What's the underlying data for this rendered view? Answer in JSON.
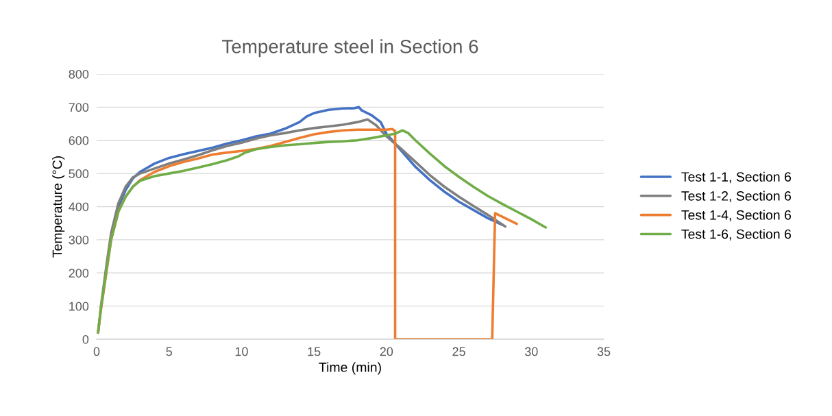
{
  "chart_data": {
    "type": "line",
    "title": "Temperature steel in Section 6",
    "xlabel": "Time (min)",
    "ylabel": "Temperature (°C)",
    "xlim": [
      0,
      35
    ],
    "xticks": [
      0,
      5,
      10,
      15,
      20,
      25,
      30,
      35
    ],
    "ylim": [
      0,
      800
    ],
    "yticks": [
      0,
      100,
      200,
      300,
      400,
      500,
      600,
      700,
      800
    ],
    "grid": "y",
    "legend": "right",
    "marker": "none",
    "line_style": "solid",
    "series": [
      {
        "name": "Test 1-1, Section 6",
        "color": "#4472c4",
        "x": [
          1,
          1.5,
          2,
          2.5,
          3,
          4,
          5,
          6,
          7,
          8,
          9,
          10,
          11,
          12,
          13,
          14,
          14.5,
          15,
          16,
          17,
          17.8,
          18.1,
          18.3,
          19,
          19.6,
          20,
          21,
          22,
          23,
          24,
          25,
          26,
          27,
          28
        ],
        "values": [
          310,
          400,
          450,
          485,
          505,
          530,
          547,
          558,
          568,
          578,
          590,
          600,
          612,
          620,
          635,
          655,
          672,
          682,
          692,
          696,
          697,
          700,
          690,
          675,
          655,
          620,
          570,
          520,
          480,
          445,
          415,
          390,
          365,
          345
        ]
      },
      {
        "name": "Test 1-2, Section 6",
        "color": "#7f7f7f",
        "x": [
          0.1,
          0.3,
          0.7,
          1,
          1.5,
          2,
          2.5,
          3,
          4,
          5,
          6,
          7,
          8,
          9,
          10,
          11,
          12,
          13,
          14,
          15,
          16,
          17,
          18,
          18.7,
          19.3,
          20,
          21,
          22,
          23,
          24,
          25,
          26,
          27,
          28.2
        ],
        "values": [
          20,
          100,
          230,
          320,
          410,
          460,
          488,
          500,
          515,
          530,
          542,
          555,
          570,
          583,
          593,
          605,
          615,
          622,
          630,
          637,
          642,
          647,
          655,
          663,
          645,
          612,
          575,
          535,
          495,
          460,
          430,
          402,
          375,
          340
        ]
      },
      {
        "name": "Test 1-4, Section 6",
        "color": "#ed7d31",
        "x": [
          0.1,
          0.3,
          0.7,
          1,
          1.5,
          2,
          2.5,
          3,
          4,
          5,
          6,
          7,
          8,
          9,
          10,
          11,
          12,
          13,
          14,
          15,
          16,
          17,
          18,
          19,
          20,
          20.4,
          20.6,
          20.6,
          27.3,
          27.5,
          29
        ],
        "values": [
          20,
          90,
          210,
          300,
          385,
          430,
          460,
          480,
          505,
          522,
          535,
          545,
          557,
          563,
          568,
          574,
          583,
          595,
          607,
          618,
          625,
          630,
          632,
          632,
          632,
          634,
          628,
          0,
          0,
          380,
          348
        ]
      },
      {
        "name": "Test 1-6, Section 6",
        "color": "#70ad47",
        "x": [
          0.1,
          0.3,
          0.7,
          1,
          1.5,
          2,
          2.5,
          3,
          4,
          5,
          6,
          7,
          8,
          9,
          9.8,
          10.2,
          11,
          12,
          13,
          14,
          15,
          16,
          17,
          18,
          19,
          20,
          20.6,
          21.1,
          21.5,
          22,
          23,
          24,
          25,
          26,
          27,
          28,
          29,
          30,
          31
        ],
        "values": [
          20,
          95,
          215,
          300,
          385,
          430,
          460,
          478,
          492,
          500,
          508,
          518,
          528,
          540,
          552,
          562,
          573,
          580,
          585,
          588,
          592,
          595,
          597,
          600,
          607,
          615,
          620,
          630,
          622,
          600,
          560,
          522,
          490,
          460,
          432,
          408,
          385,
          362,
          337
        ]
      }
    ]
  }
}
